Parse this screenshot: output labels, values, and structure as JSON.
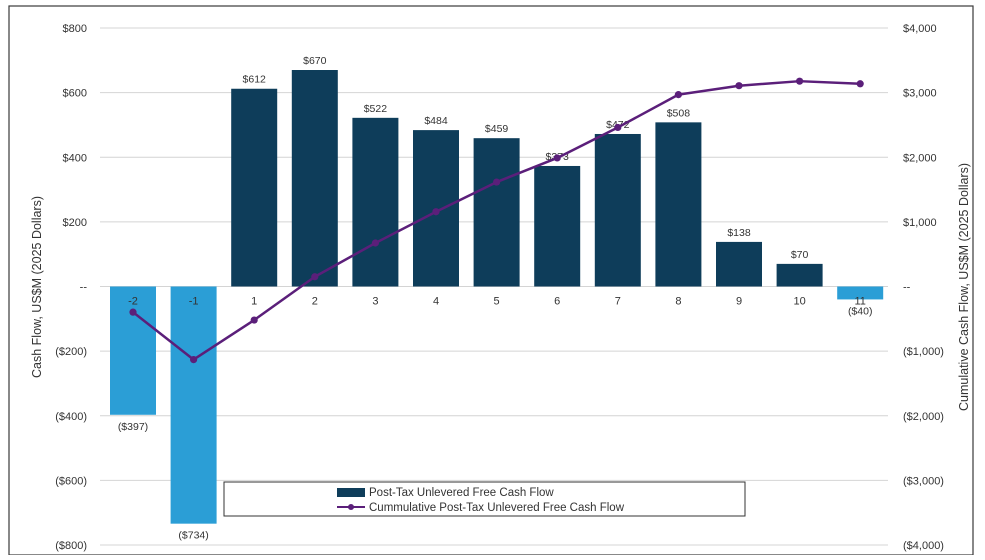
{
  "chart_data": {
    "type": "bar",
    "categories": [
      "-2",
      "-1",
      "1",
      "2",
      "3",
      "4",
      "5",
      "6",
      "7",
      "8",
      "9",
      "10",
      "11"
    ],
    "series": [
      {
        "name": "Post-Tax Unlevered Free Cash Flow",
        "kind": "bar",
        "axis": "left",
        "values": [
          -397,
          -734,
          612,
          670,
          522,
          484,
          459,
          373,
          472,
          508,
          138,
          70,
          -40
        ],
        "labels": [
          "($397)",
          "($734)",
          "$612",
          "$670",
          "$522",
          "$484",
          "$459",
          "$373",
          "$472",
          "$508",
          "$138",
          "$70",
          "($40)"
        ],
        "colors": {
          "positive": "#0e3d5a",
          "negative": "#2b9ed6"
        }
      },
      {
        "name": "Cummulative Post-Tax Unlevered Free Cash Flow",
        "kind": "line",
        "axis": "right",
        "values": [
          -397,
          -1131,
          -519,
          151,
          673,
          1157,
          1616,
          1989,
          2461,
          2969,
          3107,
          3177,
          3137
        ],
        "color": "#5b1f7a"
      }
    ],
    "y_left": {
      "label": "Cash Flow, US$M (2025 Dollars)",
      "ylim": [
        -800,
        800
      ],
      "ticks": [
        800,
        600,
        400,
        200,
        0,
        -200,
        -400,
        -600,
        -800
      ],
      "tick_labels": [
        "$800",
        "$600",
        "$400",
        "$200",
        "--",
        "($200)",
        "($400)",
        "($600)",
        "($800)"
      ]
    },
    "y_right": {
      "label": "Cumulative Cash Flow, US$M (2025 Dollars)",
      "ylim": [
        -4000,
        4000
      ],
      "ticks": [
        4000,
        3000,
        2000,
        1000,
        0,
        -1000,
        -2000,
        -3000,
        -4000
      ],
      "tick_labels": [
        "$4,000",
        "$3,000",
        "$2,000",
        "$1,000",
        "--",
        "($1,000)",
        "($2,000)",
        "($3,000)",
        "($4,000)"
      ]
    },
    "grid": true,
    "legend": "bottom-center"
  }
}
